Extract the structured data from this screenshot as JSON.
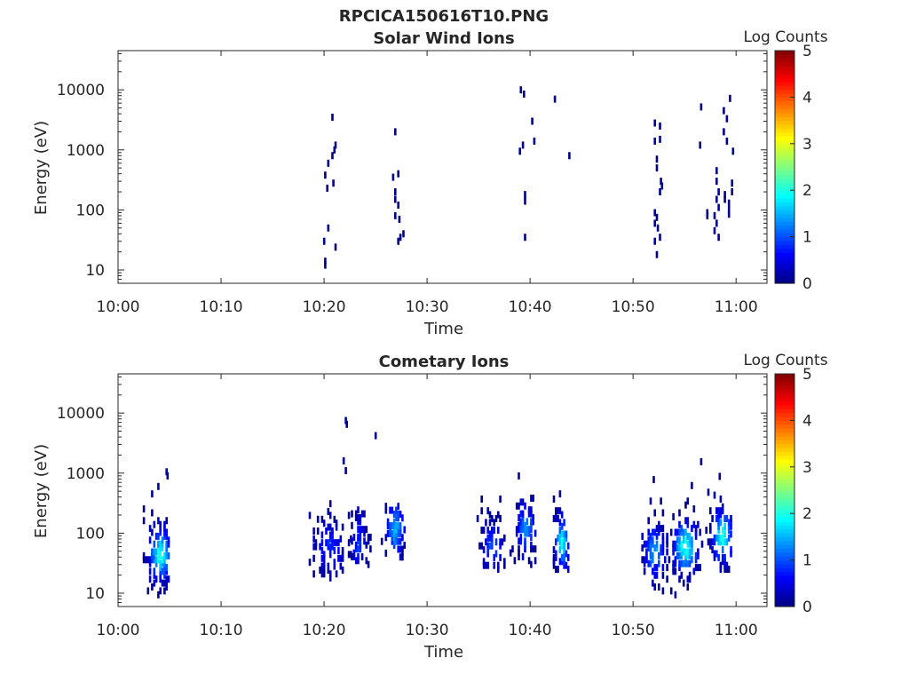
{
  "figure_title": "RPCICA150616T10.PNG",
  "colors": {
    "axis": "#262626",
    "background": "#ffffff"
  },
  "colormap": [
    "#00007f",
    "#0000ff",
    "#007fff",
    "#00ffff",
    "#7fff7f",
    "#ffff00",
    "#ff7f00",
    "#ff0000",
    "#7f0000"
  ],
  "chart_data": [
    {
      "type": "heatmap",
      "title": "Solar Wind Ions",
      "xlabel": "Time",
      "ylabel": "Energy (eV)",
      "x_ticks": [
        "10:00",
        "10:10",
        "10:20",
        "10:30",
        "10:40",
        "10:50",
        "11:00"
      ],
      "y_ticks": [
        "10",
        "100",
        "1000",
        "10000"
      ],
      "y_scale": "log",
      "y_range": [
        6,
        45000
      ],
      "x_range_minutes": [
        0,
        63
      ],
      "colorbar": {
        "label": "Log Counts",
        "ticks": [
          "0",
          "1",
          "2",
          "3",
          "4",
          "5"
        ],
        "range": [
          0,
          5
        ]
      },
      "points": [
        {
          "t": 20.0,
          "e": 12,
          "v": 0.05
        },
        {
          "t": 20.0,
          "e": 14,
          "v": 0.05
        },
        {
          "t": 19.9,
          "e": 30,
          "v": 0.05
        },
        {
          "t": 20.3,
          "e": 50,
          "v": 0.05
        },
        {
          "t": 21.0,
          "e": 24,
          "v": 0.05
        },
        {
          "t": 20.2,
          "e": 230,
          "v": 0.05
        },
        {
          "t": 20.0,
          "e": 380,
          "v": 0.05
        },
        {
          "t": 20.3,
          "e": 600,
          "v": 0.05
        },
        {
          "t": 20.8,
          "e": 280,
          "v": 0.05
        },
        {
          "t": 20.7,
          "e": 800,
          "v": 0.05
        },
        {
          "t": 20.9,
          "e": 1000,
          "v": 0.05
        },
        {
          "t": 21.0,
          "e": 1200,
          "v": 0.05
        },
        {
          "t": 20.7,
          "e": 3500,
          "v": 0.05
        },
        {
          "t": 26.6,
          "e": 350,
          "v": 0.05
        },
        {
          "t": 26.8,
          "e": 200,
          "v": 0.05
        },
        {
          "t": 26.8,
          "e": 150,
          "v": 0.05
        },
        {
          "t": 27.1,
          "e": 120,
          "v": 0.05
        },
        {
          "t": 27.1,
          "e": 400,
          "v": 0.05
        },
        {
          "t": 26.8,
          "e": 80,
          "v": 0.05
        },
        {
          "t": 27.2,
          "e": 70,
          "v": 0.05
        },
        {
          "t": 27.1,
          "e": 30,
          "v": 0.05
        },
        {
          "t": 27.3,
          "e": 35,
          "v": 0.05
        },
        {
          "t": 27.6,
          "e": 40,
          "v": 0.05
        },
        {
          "t": 26.8,
          "e": 2000,
          "v": 0.05
        },
        {
          "t": 39.0,
          "e": 10000,
          "v": 0.05
        },
        {
          "t": 39.3,
          "e": 8500,
          "v": 0.05
        },
        {
          "t": 38.9,
          "e": 950,
          "v": 0.05
        },
        {
          "t": 39.2,
          "e": 1200,
          "v": 0.05
        },
        {
          "t": 39.4,
          "e": 140,
          "v": 0.05
        },
        {
          "t": 39.4,
          "e": 180,
          "v": 0.05
        },
        {
          "t": 39.4,
          "e": 35,
          "v": 0.05
        },
        {
          "t": 40.1,
          "e": 3000,
          "v": 0.05
        },
        {
          "t": 40.3,
          "e": 1400,
          "v": 0.05
        },
        {
          "t": 42.3,
          "e": 7000,
          "v": 0.05
        },
        {
          "t": 43.7,
          "e": 800,
          "v": 0.05
        },
        {
          "t": 52.0,
          "e": 2800,
          "v": 0.05
        },
        {
          "t": 52.5,
          "e": 2500,
          "v": 0.05
        },
        {
          "t": 52.0,
          "e": 1400,
          "v": 0.05
        },
        {
          "t": 52.5,
          "e": 1500,
          "v": 0.05
        },
        {
          "t": 52.2,
          "e": 700,
          "v": 0.05
        },
        {
          "t": 52.2,
          "e": 500,
          "v": 0.05
        },
        {
          "t": 52.6,
          "e": 300,
          "v": 0.05
        },
        {
          "t": 52.7,
          "e": 250,
          "v": 0.05
        },
        {
          "t": 52.5,
          "e": 200,
          "v": 0.05
        },
        {
          "t": 52.0,
          "e": 90,
          "v": 0.05
        },
        {
          "t": 52.2,
          "e": 75,
          "v": 0.05
        },
        {
          "t": 52.0,
          "e": 60,
          "v": 0.05
        },
        {
          "t": 52.3,
          "e": 50,
          "v": 0.05
        },
        {
          "t": 52.0,
          "e": 30,
          "v": 0.05
        },
        {
          "t": 52.5,
          "e": 35,
          "v": 0.05
        },
        {
          "t": 52.2,
          "e": 18,
          "v": 0.05
        },
        {
          "t": 56.5,
          "e": 5200,
          "v": 0.05
        },
        {
          "t": 56.4,
          "e": 1200,
          "v": 0.05
        },
        {
          "t": 57.1,
          "e": 80,
          "v": 0.05
        },
        {
          "t": 57.1,
          "e": 90,
          "v": 0.05
        },
        {
          "t": 58.0,
          "e": 450,
          "v": 0.05
        },
        {
          "t": 58.0,
          "e": 300,
          "v": 0.05
        },
        {
          "t": 58.2,
          "e": 200,
          "v": 0.05
        },
        {
          "t": 58.0,
          "e": 150,
          "v": 0.05
        },
        {
          "t": 58.2,
          "e": 110,
          "v": 0.05
        },
        {
          "t": 57.8,
          "e": 80,
          "v": 0.05
        },
        {
          "t": 58.0,
          "e": 60,
          "v": 0.05
        },
        {
          "t": 57.8,
          "e": 45,
          "v": 0.05
        },
        {
          "t": 58.2,
          "e": 35,
          "v": 0.05
        },
        {
          "t": 58.8,
          "e": 180,
          "v": 0.05
        },
        {
          "t": 58.8,
          "e": 150,
          "v": 0.05
        },
        {
          "t": 59.2,
          "e": 130,
          "v": 0.05
        },
        {
          "t": 59.2,
          "e": 100,
          "v": 0.05
        },
        {
          "t": 59.2,
          "e": 85,
          "v": 0.05
        },
        {
          "t": 59.5,
          "e": 200,
          "v": 0.05
        },
        {
          "t": 59.5,
          "e": 280,
          "v": 0.05
        },
        {
          "t": 58.7,
          "e": 4500,
          "v": 0.05
        },
        {
          "t": 59.0,
          "e": 3300,
          "v": 0.05
        },
        {
          "t": 58.7,
          "e": 2000,
          "v": 0.05
        },
        {
          "t": 59.0,
          "e": 1400,
          "v": 0.05
        },
        {
          "t": 59.3,
          "e": 7200,
          "v": 0.05
        },
        {
          "t": 59.6,
          "e": 950,
          "v": 0.05
        }
      ]
    },
    {
      "type": "heatmap",
      "title": "Cometary Ions",
      "xlabel": "Time",
      "ylabel": "Energy (eV)",
      "x_ticks": [
        "10:00",
        "10:10",
        "10:20",
        "10:30",
        "10:40",
        "10:50",
        "11:00"
      ],
      "y_ticks": [
        "10",
        "100",
        "1000",
        "10000"
      ],
      "y_scale": "log",
      "y_range": [
        6,
        45000
      ],
      "x_range_minutes": [
        0,
        63
      ],
      "colorbar": {
        "label": "Log Counts",
        "ticks": [
          "0",
          "1",
          "2",
          "3",
          "4",
          "5"
        ],
        "range": [
          0,
          5
        ]
      },
      "clusters": [
        {
          "t_range": [
            2.2,
            4.9
          ],
          "e_range": [
            6,
            1100
          ],
          "center_t": 4.0,
          "center_e": 45,
          "peak": 2.0,
          "density": 0.75
        },
        {
          "t_range": [
            18.5,
            22.5
          ],
          "e_range": [
            18,
            700
          ],
          "center_t": 20.3,
          "center_e": 60,
          "peak": 0.8,
          "density": 0.4
        },
        {
          "t_range": [
            22.6,
            24.5
          ],
          "e_range": [
            30,
            300
          ],
          "center_t": 23.3,
          "center_e": 70,
          "peak": 0.9,
          "density": 0.5
        },
        {
          "t_range": [
            25.5,
            27.8
          ],
          "e_range": [
            40,
            300
          ],
          "center_t": 26.8,
          "center_e": 120,
          "peak": 1.5,
          "density": 0.6
        },
        {
          "t_range": [
            34.8,
            37.5
          ],
          "e_range": [
            25,
            400
          ],
          "center_t": 36.3,
          "center_e": 60,
          "peak": 1.0,
          "density": 0.5
        },
        {
          "t_range": [
            38.0,
            40.5
          ],
          "e_range": [
            30,
            400
          ],
          "center_t": 39.5,
          "center_e": 120,
          "peak": 1.3,
          "density": 0.6
        },
        {
          "t_range": [
            42.0,
            43.8
          ],
          "e_range": [
            25,
            500
          ],
          "center_t": 43.0,
          "center_e": 70,
          "peak": 1.8,
          "density": 0.65
        },
        {
          "t_range": [
            50.8,
            53.5
          ],
          "e_range": [
            6,
            800
          ],
          "center_t": 52.0,
          "center_e": 50,
          "peak": 1.4,
          "density": 0.55
        },
        {
          "t_range": [
            53.6,
            56.8
          ],
          "e_range": [
            6,
            900
          ],
          "center_t": 55.0,
          "center_e": 60,
          "peak": 2.0,
          "density": 0.7
        },
        {
          "t_range": [
            57.0,
            59.6
          ],
          "e_range": [
            25,
            1300
          ],
          "center_t": 58.6,
          "center_e": 90,
          "peak": 2.0,
          "density": 0.7
        }
      ],
      "sparse_points": [
        {
          "t": 22.0,
          "e": 7500,
          "v": 0.1
        },
        {
          "t": 22.1,
          "e": 6500,
          "v": 0.1
        },
        {
          "t": 24.9,
          "e": 4200,
          "v": 0.1
        },
        {
          "t": 21.8,
          "e": 1600,
          "v": 0.1
        },
        {
          "t": 22.0,
          "e": 1100,
          "v": 0.1
        },
        {
          "t": 4.6,
          "e": 1050,
          "v": 0.1
        },
        {
          "t": 4.7,
          "e": 900,
          "v": 0.1
        },
        {
          "t": 3.8,
          "e": 600,
          "v": 0.1
        },
        {
          "t": 3.2,
          "e": 450,
          "v": 0.1
        },
        {
          "t": 38.8,
          "e": 900,
          "v": 0.1
        },
        {
          "t": 51.9,
          "e": 780,
          "v": 0.1
        },
        {
          "t": 56.5,
          "e": 1550,
          "v": 0.1
        },
        {
          "t": 58.3,
          "e": 880,
          "v": 0.1
        },
        {
          "t": 57.2,
          "e": 480,
          "v": 0.1
        },
        {
          "t": 42.8,
          "e": 450,
          "v": 0.1
        }
      ]
    }
  ]
}
